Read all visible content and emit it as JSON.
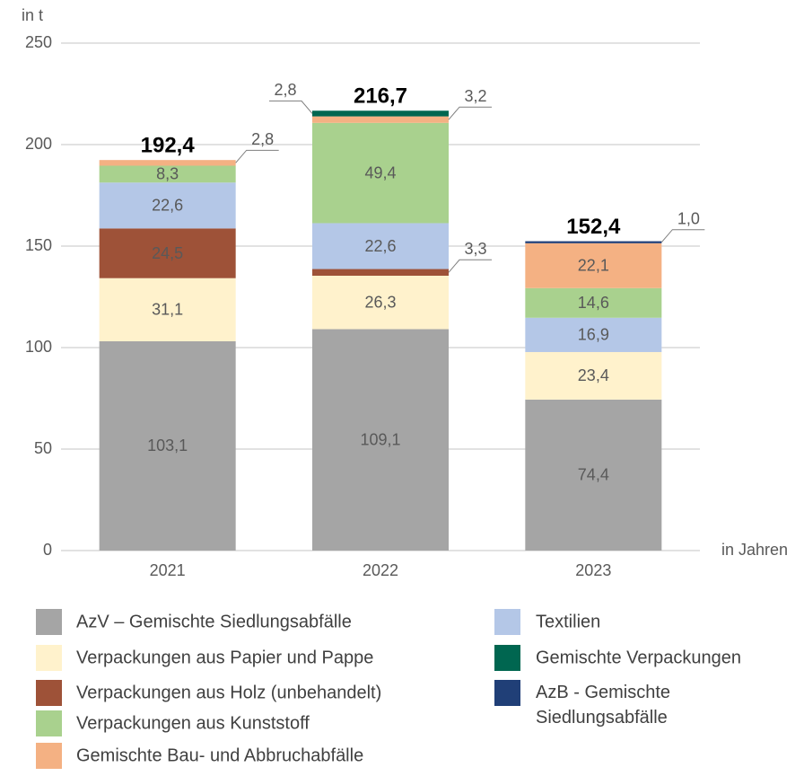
{
  "chart_data": {
    "type": "stacked_bar",
    "y_axis_label": "in t",
    "x_axis_label": "in Jahren",
    "categories": [
      "2021",
      "2022",
      "2023"
    ],
    "ylim": [
      0,
      250
    ],
    "yticks": [
      0,
      50,
      100,
      150,
      200,
      250
    ],
    "grid": true,
    "series": [
      {
        "name": "AzV – Gemischte Siedlungsabfälle",
        "color": "#a5a5a5",
        "values": [
          103.1,
          109.1,
          74.4
        ],
        "value_labels": [
          "103,1",
          "109,1",
          "74,4"
        ]
      },
      {
        "name": "Verpackungen aus Papier und Pappe",
        "color": "#fff2cc",
        "values": [
          31.1,
          26.3,
          23.4
        ],
        "value_labels": [
          "31,1",
          "26,3",
          "23,4"
        ]
      },
      {
        "name": "Verpackungen aus Holz (unbehandelt)",
        "color": "#9e5238",
        "values": [
          24.5,
          3.3,
          null
        ],
        "value_labels": [
          "24,5",
          "3,3",
          null
        ]
      },
      {
        "name": "Textilien",
        "color": "#b4c7e7",
        "values": [
          22.6,
          22.6,
          16.9
        ],
        "value_labels": [
          "22,6",
          "22,6",
          "16,9"
        ]
      },
      {
        "name": "Verpackungen aus Kunststoff",
        "color": "#a9d18e",
        "values": [
          8.3,
          49.4,
          14.6
        ],
        "value_labels": [
          "8,3",
          "49,4",
          "14,6"
        ]
      },
      {
        "name": "Gemischte Bau- und Abbruchabfälle",
        "color": "#f4b183",
        "values": [
          2.8,
          3.2,
          22.1
        ],
        "value_labels": [
          "2,8",
          "3,2",
          "22,1"
        ]
      },
      {
        "name": "Gemischte Verpackungen",
        "color": "#006650",
        "values": [
          null,
          2.8,
          null
        ],
        "value_labels": [
          null,
          "2,8",
          null
        ]
      },
      {
        "name": "AzB - Gemischte Siedlungsabfälle",
        "color": "#203f77",
        "values": [
          null,
          null,
          1.0
        ],
        "value_labels": [
          null,
          null,
          "1,0"
        ]
      }
    ],
    "totals": [
      192.4,
      216.7,
      152.4
    ],
    "total_labels": [
      "192,4",
      "216,7",
      "152,4"
    ]
  }
}
